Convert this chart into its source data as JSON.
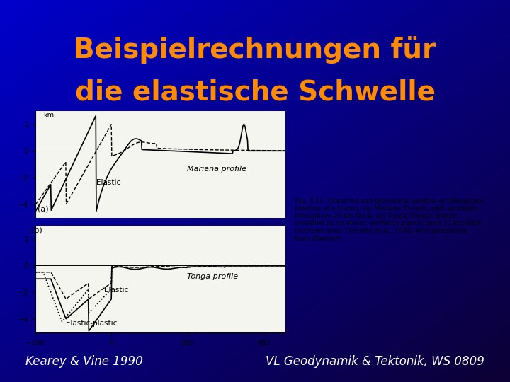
{
  "title_line1": "Beispielrechnungen für",
  "title_line2": "die elastische Schwelle",
  "title_color": "#FF8C00",
  "title_fontsize": 28,
  "bg_color": "#1a1aff",
  "bg_color_top": "#0000cc",
  "bg_color_bottom": "#000033",
  "panel_bg": "#f5f5f0",
  "footer_left": "Kearey & Vine 1990",
  "footer_right": "VL Geodynamik & Tektonik, WS 0809",
  "footer_color": "#ffffff",
  "footer_fontsize": 12,
  "image_placeholder": true,
  "image_note": "Scanned figure from Kearey & Vine 1990 showing lithosphere bending profiles"
}
